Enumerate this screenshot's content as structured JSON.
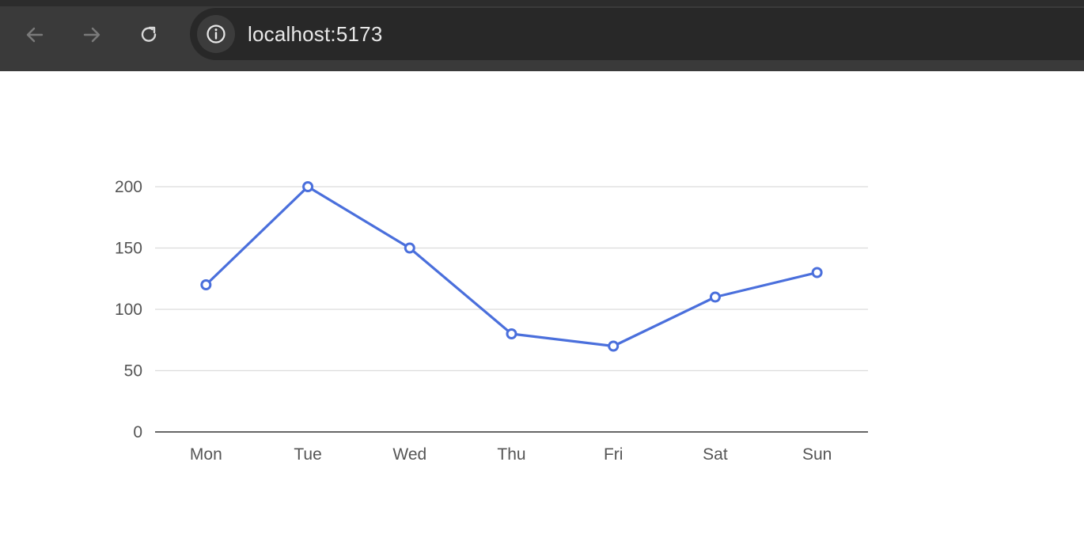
{
  "browser": {
    "url": "localhost:5173",
    "icons": {
      "back": "arrow-left-icon",
      "forward": "arrow-right-icon",
      "reload": "reload-icon",
      "site_info": "info-icon"
    }
  },
  "chart_data": {
    "type": "line",
    "categories": [
      "Mon",
      "Tue",
      "Wed",
      "Thu",
      "Fri",
      "Sat",
      "Sun"
    ],
    "series": [
      {
        "values": [
          120,
          200,
          150,
          80,
          70,
          110,
          130
        ]
      }
    ],
    "ylim": [
      0,
      200
    ],
    "yticks": [
      0,
      50,
      100,
      150,
      200
    ],
    "grid": true,
    "legend": "none",
    "colors": {
      "line": "#4a6fdc",
      "grid": "#dcdcdc",
      "axis": "#333333",
      "label": "#555555"
    }
  }
}
